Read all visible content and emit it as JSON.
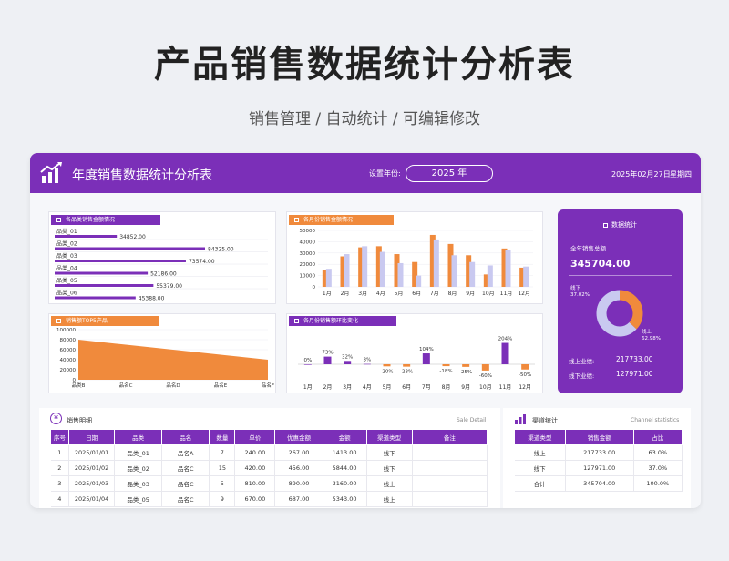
{
  "hero": {
    "title": "产品销售数据统计分析表",
    "subtitle": "销售管理 / 自动统计 / 可编辑修改"
  },
  "topbar": {
    "title": "年度销售数据统计分析表",
    "year_label": "设置年份:",
    "year_value": "2025 年",
    "date": "2025年02月27日",
    "weekday": "星期四",
    "icon": "bar-chart-trend-icon"
  },
  "colors": {
    "purple": "#7b2fb8",
    "orange": "#f08a3c",
    "lavender": "#c9c9f0",
    "light_purple": "#c9b3e6"
  },
  "panels": {
    "category_sales": "各品类销售金额情况",
    "monthly_sales": "各月份销售金额情况",
    "top5": "销售额TOP5产品",
    "mom": "各月份销售额环比变化"
  },
  "stats": {
    "title": "数据统计",
    "total_label": "全年销售总额",
    "total_value": "345704.00",
    "offline_label": "线下",
    "offline_pct": "37.02%",
    "online_label": "线上",
    "online_pct": "62.98%",
    "online_rows_label": "线上业绩:",
    "online_rows_value": "217733.00",
    "offline_rows_label": "线下业绩:",
    "offline_rows_value": "127971.00"
  },
  "sales_detail": {
    "title": "销售明细",
    "title_en": "Sale Detail",
    "headers": [
      "序号",
      "日期",
      "品类",
      "品名",
      "数量",
      "单价",
      "优惠金额",
      "金额",
      "渠道类型",
      "备注"
    ],
    "rows": [
      [
        "1",
        "2025/01/01",
        "品类_01",
        "品名A",
        "7",
        "240.00",
        "267.00",
        "1413.00",
        "线下",
        ""
      ],
      [
        "2",
        "2025/01/02",
        "品类_02",
        "品名C",
        "15",
        "420.00",
        "456.00",
        "5844.00",
        "线下",
        ""
      ],
      [
        "3",
        "2025/01/03",
        "品类_03",
        "品名C",
        "5",
        "810.00",
        "890.00",
        "3160.00",
        "线上",
        ""
      ],
      [
        "4",
        "2025/01/04",
        "品类_05",
        "品名C",
        "9",
        "670.00",
        "687.00",
        "5343.00",
        "线上",
        ""
      ]
    ]
  },
  "channel": {
    "title": "渠道统计",
    "title_en": "Channel statistics",
    "headers": [
      "渠道类型",
      "销售金额",
      "占比"
    ],
    "rows": [
      [
        "线上",
        "217733.00",
        "63.0%"
      ],
      [
        "线下",
        "127971.00",
        "37.0%"
      ],
      [
        "合计",
        "345704.00",
        "100.0%"
      ]
    ]
  },
  "chart_data": [
    {
      "type": "bar",
      "orientation": "horizontal",
      "categories": [
        "品类_01",
        "品类_02",
        "品类_03",
        "品类_04",
        "品类_05",
        "品类_06"
      ],
      "values": [
        34852.0,
        84325.0,
        73574.0,
        52186.0,
        55379.0,
        45388.0
      ],
      "value_labels": [
        "34852.00",
        "84325.00",
        "73574.00",
        "52186.00",
        "55379.00",
        "45388.00"
      ],
      "title": "各品类销售金额情况"
    },
    {
      "type": "bar",
      "title": "各月份销售金额情况",
      "categories": [
        "1月",
        "2月",
        "3月",
        "4月",
        "5月",
        "6月",
        "7月",
        "8月",
        "9月",
        "10月",
        "11月",
        "12月"
      ],
      "series": [
        {
          "values": [
            15000,
            27000,
            35000,
            36000,
            29000,
            22000,
            46000,
            38000,
            28000,
            11000,
            34000,
            17000
          ],
          "color": "#f08a3c"
        },
        {
          "values": [
            16000,
            29000,
            36000,
            31000,
            21000,
            10000,
            42000,
            28000,
            22000,
            19000,
            33000,
            18000
          ],
          "color": "#c9c9f0"
        }
      ],
      "yticks": [
        "0",
        "10000",
        "20000",
        "30000",
        "40000",
        "50000"
      ],
      "ylim": [
        0,
        50000
      ]
    },
    {
      "type": "area",
      "title": "销售额TOP5产品",
      "categories": [
        "品类B",
        "品名C",
        "品名D",
        "品名E",
        "品名F"
      ],
      "values": [
        80000,
        70000,
        60000,
        50000,
        40000
      ],
      "yticks": [
        "0",
        "20000",
        "40000",
        "60000",
        "80000",
        "100000"
      ],
      "ylim": [
        0,
        100000
      ]
    },
    {
      "type": "bar",
      "title": "各月份销售额环比变化",
      "categories": [
        "1月",
        "2月",
        "3月",
        "4月",
        "5月",
        "6月",
        "7月",
        "8月",
        "9月",
        "10月",
        "11月",
        "12月"
      ],
      "values": [
        0,
        73,
        32,
        3,
        -20,
        -23,
        104,
        -18,
        -25,
        -60,
        204,
        -50
      ],
      "value_labels": [
        "0%",
        "73%",
        "32%",
        "3%",
        "-20%",
        "-23%",
        "104%",
        "-18%",
        "-25%",
        "-60%",
        "204%",
        "-50%"
      ]
    },
    {
      "type": "pie",
      "title": "数据统计",
      "categories": [
        "线下",
        "线上"
      ],
      "values": [
        37.02,
        62.98
      ]
    }
  ]
}
